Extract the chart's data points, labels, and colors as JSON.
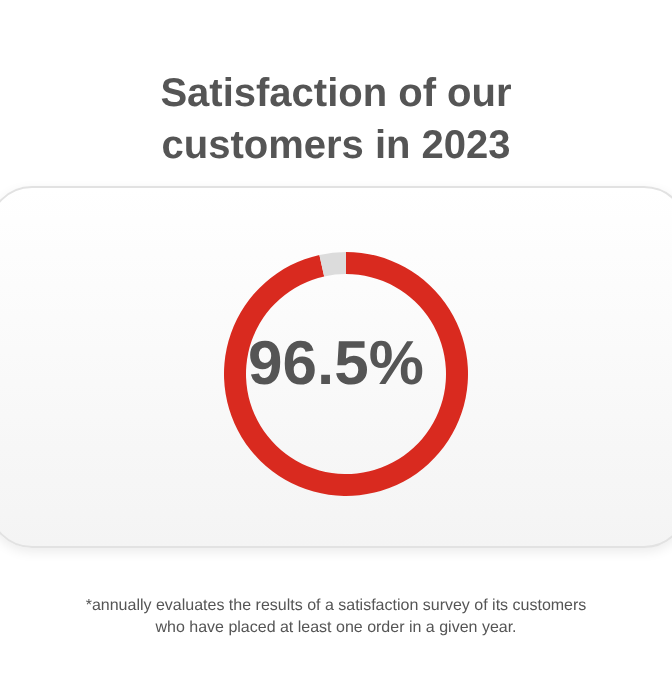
{
  "chart_data": {
    "type": "donut",
    "title": "Satisfaction of our customers in 2023",
    "categories": [
      null,
      null
    ],
    "values": [
      96.5,
      3.5
    ],
    "colors": [
      "#d92a1f",
      "#dcdcdc"
    ],
    "value_labels": [
      "96.5%",
      null
    ],
    "annotations": [
      "*annually evaluates the results of a satisfaction survey of its customers who have placed at least one order in a given year."
    ]
  }
}
